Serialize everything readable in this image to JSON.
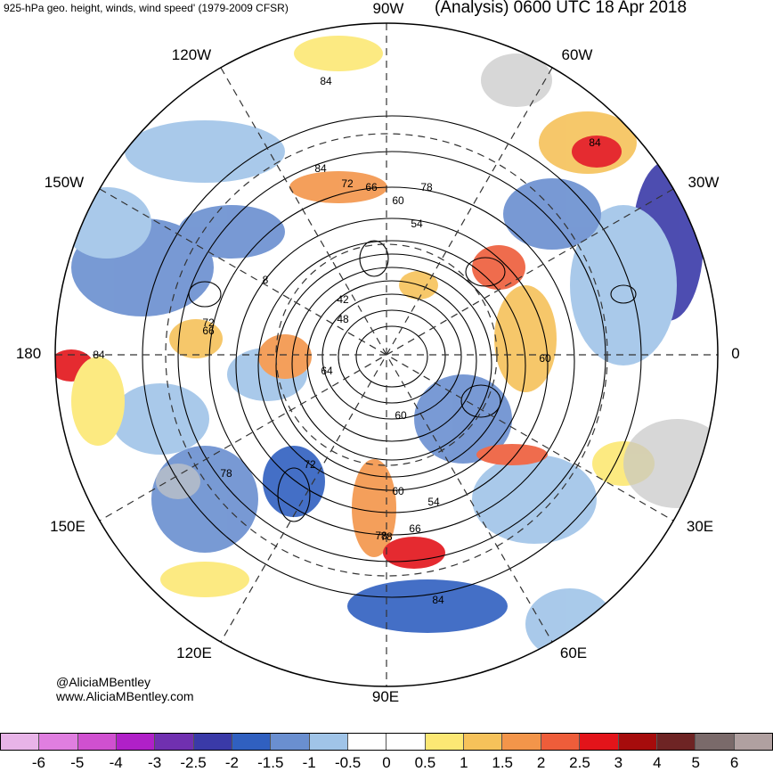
{
  "header": {
    "product": "925-hPa geo. height, winds, wind speed' (1979-2009 CFSR)",
    "valid": "(Analysis) 0600 UTC 18 Apr 2018"
  },
  "longitudes": {
    "n": "90W",
    "ne": "60W",
    "e1": "30W",
    "e": "0",
    "se1": "30E",
    "se": "60E",
    "s": "90E",
    "sw": "120E",
    "w1": "150E",
    "w": "180",
    "nw1": "150W",
    "nw": "120W"
  },
  "contour_labels": [
    "84",
    "84",
    "72",
    "66",
    "60",
    "78",
    "54",
    "48",
    "42",
    "72",
    "66",
    "78",
    "84",
    "60",
    "84",
    "78",
    "72",
    "60",
    "54",
    "66",
    "84",
    "78",
    "64",
    "8",
    "60"
  ],
  "credits": {
    "handle": "@AliciaMBentley",
    "site": "www.AliciaMBentley.com"
  },
  "colorbar": {
    "colors": [
      "#e8b4e8",
      "#e07ee0",
      "#d050d0",
      "#b020c8",
      "#7030b0",
      "#3a3aa8",
      "#3060c0",
      "#6a8fd0",
      "#a0c4e8",
      "#ffffff",
      "#ffffff",
      "#fce874",
      "#f6c25a",
      "#f3954a",
      "#ee5d3a",
      "#e3141a",
      "#a60c0c",
      "#6e2424",
      "#7a6a6a",
      "#b0a0a0"
    ],
    "ticks": [
      "-6",
      "-5",
      "-4",
      "-3",
      "-2.5",
      "-2",
      "-1.5",
      "-1",
      "-0.5",
      "0",
      "0.5",
      "1",
      "1.5",
      "2",
      "2.5",
      "3",
      "4",
      "5",
      "6"
    ]
  }
}
